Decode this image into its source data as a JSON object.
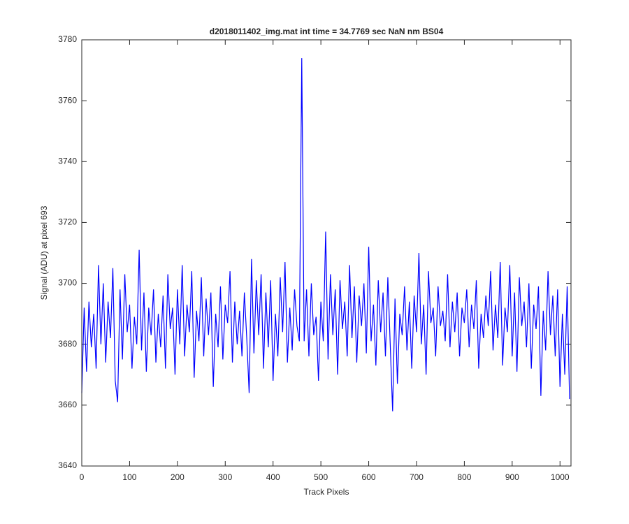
{
  "chart_data": {
    "type": "line",
    "title": "d2018011402_img.mat int time = 34.7769 sec  NaN nm BS04",
    "xlabel": "Track Pixels",
    "ylabel": "Signal (ADU) at pixel 693",
    "color": "#0000ff",
    "xlim": [
      0,
      1023
    ],
    "ylim": [
      3640,
      3780
    ],
    "xticks": [
      0,
      100,
      200,
      300,
      400,
      500,
      600,
      700,
      800,
      900,
      1000
    ],
    "yticks": [
      3640,
      3660,
      3680,
      3700,
      3720,
      3740,
      3760,
      3780
    ],
    "x": [
      0,
      5,
      10,
      15,
      20,
      25,
      30,
      35,
      40,
      45,
      50,
      55,
      60,
      65,
      70,
      75,
      80,
      85,
      90,
      95,
      100,
      105,
      110,
      115,
      120,
      125,
      130,
      135,
      140,
      145,
      150,
      155,
      160,
      165,
      170,
      175,
      180,
      185,
      190,
      195,
      200,
      205,
      210,
      215,
      220,
      225,
      230,
      235,
      240,
      245,
      250,
      255,
      260,
      265,
      270,
      275,
      280,
      285,
      290,
      295,
      300,
      305,
      310,
      315,
      320,
      325,
      330,
      335,
      340,
      345,
      350,
      355,
      360,
      365,
      370,
      375,
      380,
      385,
      390,
      395,
      400,
      405,
      410,
      415,
      420,
      425,
      430,
      435,
      440,
      445,
      450,
      455,
      460,
      465,
      470,
      475,
      480,
      485,
      490,
      495,
      500,
      505,
      510,
      515,
      520,
      525,
      530,
      535,
      540,
      545,
      550,
      555,
      560,
      565,
      570,
      575,
      580,
      585,
      590,
      595,
      600,
      605,
      610,
      615,
      620,
      625,
      630,
      635,
      640,
      645,
      650,
      655,
      660,
      665,
      670,
      675,
      680,
      685,
      690,
      695,
      700,
      705,
      710,
      715,
      720,
      725,
      730,
      735,
      740,
      745,
      750,
      755,
      760,
      765,
      770,
      775,
      780,
      785,
      790,
      795,
      800,
      805,
      810,
      815,
      820,
      825,
      830,
      835,
      840,
      845,
      850,
      855,
      860,
      865,
      870,
      875,
      880,
      885,
      890,
      895,
      900,
      905,
      910,
      915,
      920,
      925,
      930,
      935,
      940,
      945,
      950,
      955,
      960,
      965,
      970,
      975,
      980,
      985,
      990,
      995,
      1000,
      1005,
      1010,
      1015,
      1020
    ],
    "values": [
      3664,
      3692,
      3671,
      3694,
      3679,
      3690,
      3672,
      3706,
      3680,
      3700,
      3674,
      3694,
      3682,
      3705,
      3668,
      3661,
      3698,
      3675,
      3703,
      3684,
      3693,
      3672,
      3689,
      3680,
      3711,
      3678,
      3697,
      3671,
      3692,
      3683,
      3698,
      3674,
      3690,
      3679,
      3696,
      3672,
      3703,
      3685,
      3692,
      3670,
      3698,
      3680,
      3706,
      3676,
      3693,
      3684,
      3704,
      3669,
      3691,
      3681,
      3702,
      3676,
      3695,
      3683,
      3697,
      3666,
      3690,
      3679,
      3699,
      3675,
      3693,
      3687,
      3704,
      3674,
      3694,
      3680,
      3691,
      3676,
      3697,
      3682,
      3664,
      3708,
      3677,
      3701,
      3683,
      3703,
      3672,
      3697,
      3679,
      3701,
      3668,
      3690,
      3676,
      3702,
      3684,
      3707,
      3674,
      3692,
      3678,
      3698,
      3686,
      3681,
      3774,
      3681,
      3698,
      3676,
      3700,
      3683,
      3689,
      3668,
      3694,
      3681,
      3717,
      3675,
      3703,
      3683,
      3698,
      3670,
      3701,
      3685,
      3694,
      3676,
      3706,
      3682,
      3699,
      3674,
      3696,
      3686,
      3700,
      3677,
      3712,
      3681,
      3693,
      3673,
      3701,
      3684,
      3697,
      3676,
      3702,
      3680,
      3658,
      3695,
      3667,
      3690,
      3683,
      3699,
      3678,
      3694,
      3672,
      3696,
      3684,
      3710,
      3680,
      3693,
      3670,
      3704,
      3687,
      3692,
      3676,
      3699,
      3686,
      3691,
      3681,
      3703,
      3679,
      3694,
      3684,
      3697,
      3676,
      3692,
      3687,
      3698,
      3679,
      3693,
      3685,
      3701,
      3672,
      3690,
      3682,
      3696,
      3686,
      3704,
      3678,
      3693,
      3682,
      3707,
      3673,
      3692,
      3684,
      3706,
      3676,
      3697,
      3671,
      3702,
      3686,
      3694,
      3679,
      3700,
      3672,
      3693,
      3685,
      3699,
      3663,
      3691,
      3678,
      3704,
      3683,
      3696,
      3676,
      3698,
      3666,
      3690,
      3670,
      3699,
      3662
    ]
  }
}
